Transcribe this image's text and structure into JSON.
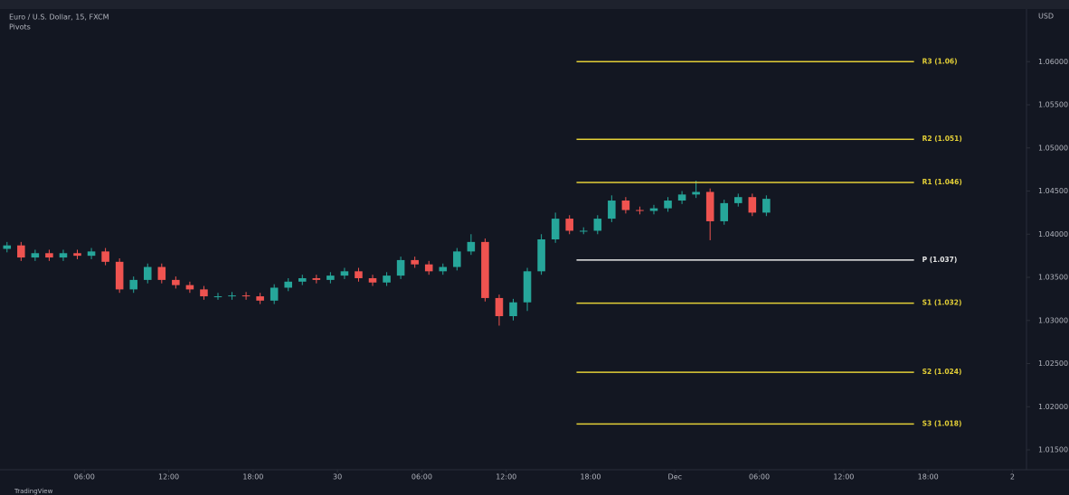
{
  "chart_data": {
    "type": "candlestick",
    "title": "Euro / U.S. Dollar, 15, FXCM",
    "subtitle": "Pivots",
    "y_label": "USD",
    "footer": "TradingView",
    "up_color": "#26a69a",
    "down_color": "#ef5350",
    "x": [
      0.5,
      1.5,
      2.5,
      3.5,
      4.5,
      5.5,
      6.5,
      7.5,
      8.5,
      9.5,
      10.5,
      11.5,
      12.5,
      13.5,
      14.5,
      15.5,
      16.5,
      17.5,
      18.5,
      19.5,
      20.5,
      21.5,
      22.5,
      23.5,
      24.5,
      25.5,
      26.5,
      27.5,
      28.5,
      29.5,
      30.5,
      31.5,
      32.5,
      33.5,
      34.5,
      35.5,
      36.5,
      37.5,
      38.5,
      39.5,
      40.5,
      41.5,
      42.5,
      43.5,
      44.5,
      45.5,
      46.5,
      47.5,
      48.5,
      49.5,
      50.5,
      51.5,
      52.5,
      53.5,
      54.5
    ],
    "open": [
      1.0383,
      1.0387,
      1.0373,
      1.0378,
      1.0373,
      1.0378,
      1.0375,
      1.038,
      1.0368,
      1.0336,
      1.0347,
      1.0362,
      1.0347,
      1.0341,
      1.0336,
      1.0328,
      1.0328,
      1.0329,
      1.0328,
      1.0323,
      1.0338,
      1.0345,
      1.0349,
      1.0347,
      1.0352,
      1.0357,
      1.0349,
      1.0344,
      1.0352,
      1.037,
      1.0365,
      1.0357,
      1.0362,
      1.038,
      1.0391,
      1.0326,
      1.0305,
      1.0321,
      1.0357,
      1.0394,
      1.0418,
      1.0404,
      1.0404,
      1.0418,
      1.0439,
      1.0428,
      1.0427,
      1.043,
      1.0439,
      1.0446,
      1.0449,
      1.0415,
      1.0436,
      1.0443,
      1.0425
    ],
    "high": [
      1.0391,
      1.0391,
      1.0382,
      1.0382,
      1.0382,
      1.0382,
      1.0384,
      1.0384,
      1.0372,
      1.0351,
      1.0366,
      1.0366,
      1.0351,
      1.0345,
      1.034,
      1.0332,
      1.0333,
      1.0333,
      1.0332,
      1.0342,
      1.0349,
      1.0353,
      1.0353,
      1.0356,
      1.0361,
      1.0361,
      1.0353,
      1.0356,
      1.0374,
      1.0374,
      1.0369,
      1.0366,
      1.0384,
      1.04,
      1.0395,
      1.033,
      1.0325,
      1.0361,
      1.04,
      1.0425,
      1.0422,
      1.0408,
      1.0422,
      1.0445,
      1.0443,
      1.0432,
      1.0434,
      1.0443,
      1.045,
      1.0462,
      1.0453,
      1.044,
      1.0447,
      1.0447,
      1.0445
    ],
    "low": [
      1.0379,
      1.0369,
      1.0369,
      1.0369,
      1.0369,
      1.0371,
      1.0371,
      1.0364,
      1.0332,
      1.0332,
      1.0343,
      1.0343,
      1.0337,
      1.0332,
      1.0324,
      1.0324,
      1.0324,
      1.0324,
      1.0319,
      1.0319,
      1.0334,
      1.0341,
      1.0343,
      1.0343,
      1.0348,
      1.0345,
      1.034,
      1.034,
      1.0348,
      1.0361,
      1.0353,
      1.0353,
      1.0358,
      1.0376,
      1.0322,
      1.0294,
      1.03,
      1.0311,
      1.0353,
      1.039,
      1.04,
      1.04,
      1.04,
      1.0414,
      1.0424,
      1.0423,
      1.0423,
      1.0426,
      1.0435,
      1.0442,
      1.0393,
      1.0411,
      1.0432,
      1.0421,
      1.0421
    ],
    "close": [
      1.0387,
      1.0373,
      1.0378,
      1.0373,
      1.0378,
      1.0375,
      1.038,
      1.0368,
      1.0336,
      1.0347,
      1.0362,
      1.0347,
      1.0341,
      1.0336,
      1.0328,
      1.0328,
      1.0329,
      1.0328,
      1.0323,
      1.0338,
      1.0345,
      1.0349,
      1.0347,
      1.0352,
      1.0357,
      1.0349,
      1.0344,
      1.0352,
      1.037,
      1.0365,
      1.0357,
      1.0362,
      1.038,
      1.0391,
      1.0326,
      1.0305,
      1.0321,
      1.0357,
      1.0394,
      1.0418,
      1.0404,
      1.0404,
      1.0418,
      1.0439,
      1.0428,
      1.0427,
      1.043,
      1.0439,
      1.0446,
      1.0449,
      1.0415,
      1.0436,
      1.0443,
      1.0425,
      1.0441
    ],
    "pivot_range": [
      41,
      65
    ],
    "pivots": [
      {
        "label": "R3 (1.06)",
        "value": 1.06,
        "color": "#e3cf37"
      },
      {
        "label": "R2 (1.051)",
        "value": 1.051,
        "color": "#e3cf37"
      },
      {
        "label": "R1 (1.046)",
        "value": 1.046,
        "color": "#e3cf37"
      },
      {
        "label": "P (1.037)",
        "value": 1.037,
        "color": "#e6e6e6"
      },
      {
        "label": "S1 (1.032)",
        "value": 1.032,
        "color": "#e3cf37"
      },
      {
        "label": "S2 (1.024)",
        "value": 1.024,
        "color": "#e3cf37"
      },
      {
        "label": "S3 (1.018)",
        "value": 1.018,
        "color": "#e3cf37"
      }
    ],
    "xlim": [
      0,
      73
    ],
    "xticks": [
      {
        "value": 6,
        "label": "06:00"
      },
      {
        "value": 12,
        "label": "12:00"
      },
      {
        "value": 18,
        "label": "18:00"
      },
      {
        "value": 24,
        "label": "30"
      },
      {
        "value": 30,
        "label": "06:00"
      },
      {
        "value": 36,
        "label": "12:00"
      },
      {
        "value": 42,
        "label": "18:00"
      },
      {
        "value": 48,
        "label": "Dec"
      },
      {
        "value": 54,
        "label": "06:00"
      },
      {
        "value": 60,
        "label": "12:00"
      },
      {
        "value": 66,
        "label": "18:00"
      },
      {
        "value": 72,
        "label": "2"
      }
    ],
    "ylim": [
      1.0127,
      1.0661
    ],
    "yticks": [
      {
        "value": 1.015,
        "label": "1.01500"
      },
      {
        "value": 1.02,
        "label": "1.02000"
      },
      {
        "value": 1.025,
        "label": "1.02500"
      },
      {
        "value": 1.03,
        "label": "1.03000"
      },
      {
        "value": 1.035,
        "label": "1.03500"
      },
      {
        "value": 1.04,
        "label": "1.04000"
      },
      {
        "value": 1.045,
        "label": "1.04500"
      },
      {
        "value": 1.05,
        "label": "1.05000"
      },
      {
        "value": 1.055,
        "label": "1.05500"
      },
      {
        "value": 1.06,
        "label": "1.06000"
      }
    ]
  }
}
